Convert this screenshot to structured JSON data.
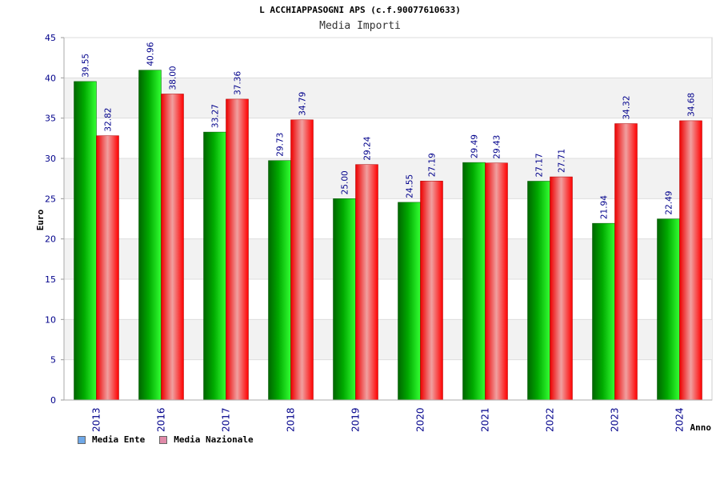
{
  "title": "L ACCHIAPPASOGNI APS (c.f.90077610633)",
  "subtitle": "Media Importi",
  "chart_data": {
    "type": "bar",
    "categories": [
      "2013",
      "2016",
      "2017",
      "2018",
      "2019",
      "2020",
      "2021",
      "2022",
      "2023",
      "2024"
    ],
    "series": [
      {
        "name": "Media Ente",
        "values": [
          39.55,
          40.96,
          33.27,
          29.73,
          25.0,
          24.55,
          29.49,
          27.17,
          21.94,
          22.49
        ],
        "color": "#00cc00",
        "legend_color": "#6fa8e8"
      },
      {
        "name": "Media Nazionale",
        "values": [
          32.82,
          38.0,
          37.36,
          34.79,
          29.24,
          27.19,
          29.43,
          27.71,
          34.32,
          34.68
        ],
        "color": "#ff0000",
        "legend_color": "#e08aa8"
      }
    ],
    "ylabel": "Euro",
    "xlabel": "Anno",
    "ylim": [
      0,
      45
    ],
    "yticks": [
      0,
      5,
      10,
      15,
      20,
      25,
      30,
      35,
      40,
      45
    ],
    "ytick_labels": [
      "0",
      "5",
      "10",
      "15",
      "20",
      "25",
      "30",
      "35",
      "40",
      "45"
    ],
    "data_labels": [
      [
        "39.55",
        "40.96",
        "33.27",
        "29.73",
        "25.00",
        "24.55",
        "29.49",
        "27.17",
        "21.94",
        "22.49"
      ],
      [
        "32.82",
        "38.00",
        "37.36",
        "34.79",
        "29.24",
        "27.19",
        "29.43",
        "27.71",
        "34.32",
        "34.68"
      ]
    ],
    "grid": true,
    "legend_position": "bottom-left"
  },
  "colors": {
    "axis_text": "#00008b",
    "grid_band": "#f2f2f2",
    "grid_line": "#dddddd"
  }
}
